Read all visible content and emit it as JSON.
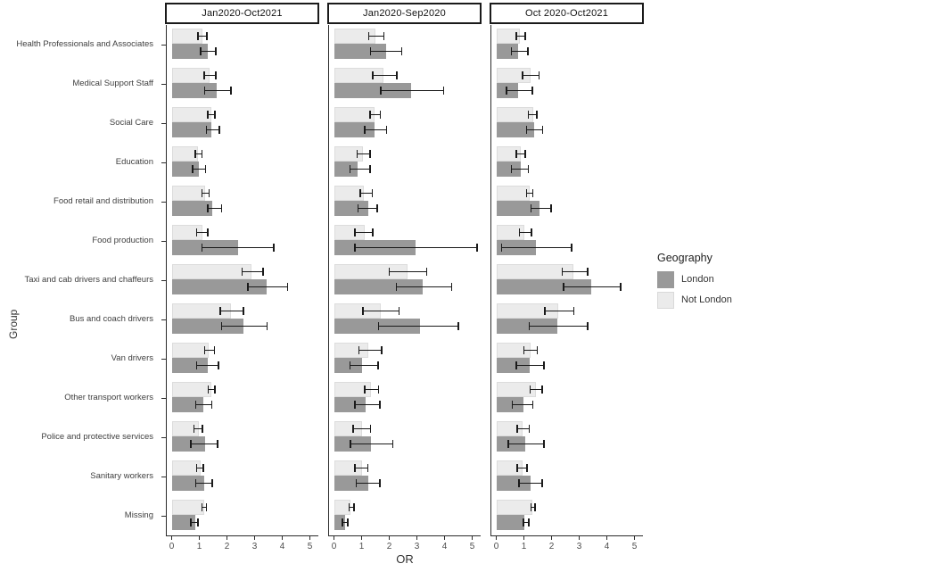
{
  "figure": {
    "y_axis_title": "Group",
    "x_axis_title": "OR"
  },
  "legend": {
    "title": "Geography",
    "items": [
      {
        "label": "London",
        "color": "#999999",
        "border": "#999999"
      },
      {
        "label": "Not London",
        "color": "#ebebeb",
        "border": "#d9d9d9"
      }
    ]
  },
  "chart_data": {
    "type": "bar",
    "orientation": "horizontal",
    "title": "",
    "xlabel": "OR",
    "ylabel": "Group",
    "xlim": [
      0,
      5.3
    ],
    "x_ticks": [
      0,
      1,
      2,
      3,
      4,
      5
    ],
    "grid": false,
    "legend_position": "right",
    "error_bars": true,
    "categories": [
      "Health Professionals and Associates",
      "Medical Support Staff",
      "Social Care",
      "Education",
      "Food retail and distribution",
      "Food production",
      "Taxi and cab drivers and chaffeurs",
      "Bus and coach drivers",
      "Van drivers",
      "Other transport workers",
      "Police and protective services",
      "Sanitary workers",
      "Missing"
    ],
    "value_format": "[OR, CI_low, CI_high]",
    "panels": [
      {
        "title": "Jan2020-Oct2021",
        "not_london": [
          [
            1.1,
            0.95,
            1.27
          ],
          [
            1.37,
            1.18,
            1.6
          ],
          [
            1.45,
            1.3,
            1.57
          ],
          [
            0.96,
            0.85,
            1.1
          ],
          [
            1.2,
            1.1,
            1.35
          ],
          [
            1.1,
            0.9,
            1.3
          ],
          [
            2.9,
            2.55,
            3.3
          ],
          [
            2.15,
            1.75,
            2.6
          ],
          [
            1.35,
            1.2,
            1.55
          ],
          [
            1.45,
            1.32,
            1.57
          ],
          [
            0.98,
            0.8,
            1.12
          ],
          [
            1.05,
            0.9,
            1.15
          ],
          [
            1.18,
            1.1,
            1.25
          ]
        ],
        "london": [
          [
            1.32,
            1.05,
            1.6
          ],
          [
            1.63,
            1.2,
            2.15
          ],
          [
            1.45,
            1.25,
            1.73
          ],
          [
            0.98,
            0.76,
            1.23
          ],
          [
            1.48,
            1.3,
            1.8
          ],
          [
            2.4,
            1.1,
            3.7
          ],
          [
            3.45,
            2.75,
            4.2
          ],
          [
            2.6,
            1.8,
            3.45
          ],
          [
            1.3,
            0.9,
            1.7
          ],
          [
            1.15,
            0.87,
            1.45
          ],
          [
            1.2,
            0.7,
            1.66
          ],
          [
            1.17,
            0.87,
            1.46
          ],
          [
            0.85,
            0.7,
            0.95
          ]
        ]
      },
      {
        "title": "Jan2020-Sep2020",
        "not_london": [
          [
            1.5,
            1.25,
            1.8
          ],
          [
            1.8,
            1.4,
            2.27
          ],
          [
            1.46,
            1.3,
            1.68
          ],
          [
            1.05,
            0.84,
            1.3
          ],
          [
            1.08,
            0.95,
            1.38
          ],
          [
            1.1,
            0.76,
            1.41
          ],
          [
            2.65,
            2.0,
            3.35
          ],
          [
            1.7,
            1.05,
            2.35
          ],
          [
            1.25,
            0.9,
            1.73
          ],
          [
            1.33,
            1.12,
            1.62
          ],
          [
            1.0,
            0.7,
            1.33
          ],
          [
            1.0,
            0.76,
            1.23
          ],
          [
            0.6,
            0.55,
            0.72
          ]
        ],
        "london": [
          [
            1.9,
            1.33,
            2.45
          ],
          [
            2.8,
            1.7,
            3.97
          ],
          [
            1.46,
            1.12,
            1.9
          ],
          [
            0.87,
            0.58,
            1.3
          ],
          [
            1.23,
            0.87,
            1.57
          ],
          [
            2.95,
            0.76,
            5.17
          ],
          [
            3.2,
            2.25,
            4.25
          ],
          [
            3.1,
            1.62,
            4.5
          ],
          [
            1.03,
            0.58,
            1.6
          ],
          [
            1.16,
            0.76,
            1.66
          ],
          [
            1.33,
            0.6,
            2.13
          ],
          [
            1.25,
            0.8,
            1.66
          ],
          [
            0.4,
            0.3,
            0.5
          ]
        ]
      },
      {
        "title": "Oct 2020-Oct2021",
        "not_london": [
          [
            0.87,
            0.73,
            1.05
          ],
          [
            1.25,
            0.95,
            1.55
          ],
          [
            1.33,
            1.16,
            1.46
          ],
          [
            0.9,
            0.73,
            1.05
          ],
          [
            1.2,
            1.09,
            1.33
          ],
          [
            1.0,
            0.84,
            1.27
          ],
          [
            2.8,
            2.38,
            3.3
          ],
          [
            2.25,
            1.76,
            2.8
          ],
          [
            1.25,
            1.0,
            1.48
          ],
          [
            1.45,
            1.23,
            1.66
          ],
          [
            0.95,
            0.76,
            1.19
          ],
          [
            0.95,
            0.76,
            1.12
          ],
          [
            1.3,
            1.25,
            1.4
          ]
        ],
        "london": [
          [
            0.8,
            0.55,
            1.15
          ],
          [
            0.8,
            0.37,
            1.3
          ],
          [
            1.38,
            1.09,
            1.68
          ],
          [
            0.9,
            0.55,
            1.16
          ],
          [
            1.57,
            1.25,
            1.98
          ],
          [
            1.45,
            0.2,
            2.73
          ],
          [
            3.45,
            2.43,
            4.5
          ],
          [
            2.2,
            1.19,
            3.3
          ],
          [
            1.2,
            0.73,
            1.73
          ],
          [
            0.98,
            0.58,
            1.33
          ],
          [
            1.05,
            0.44,
            1.73
          ],
          [
            1.25,
            0.82,
            1.66
          ],
          [
            1.03,
            0.98,
            1.18
          ]
        ]
      }
    ]
  }
}
